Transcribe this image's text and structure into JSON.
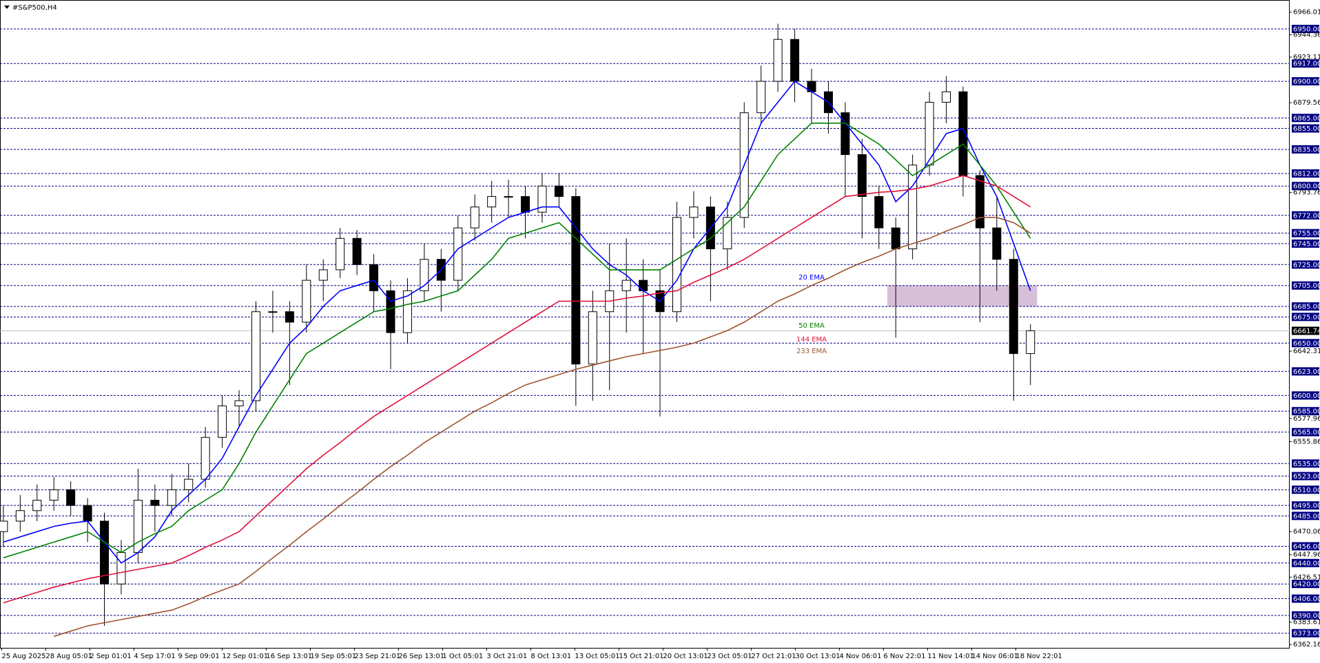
{
  "chart_data": {
    "type": "candlestick",
    "title": "#S&P500,H4",
    "ylim": [
      6359,
      6975
    ],
    "yticks": [
      6966.01,
      6944.36,
      6923.11,
      6879.56,
      6793.76,
      6642.31,
      6577.96,
      6555.86,
      6470.06,
      6447.96,
      6426.51,
      6383.61,
      6362.16
    ],
    "levels": [
      {
        "value": 6950,
        "label": "6950.00"
      },
      {
        "value": 6917,
        "label": "6917.00"
      },
      {
        "value": 6900,
        "label": "6900.00"
      },
      {
        "value": 6865,
        "label": "6865.00"
      },
      {
        "value": 6855,
        "label": "6855.00"
      },
      {
        "value": 6835,
        "label": "6835.00"
      },
      {
        "value": 6812,
        "label": "6812.00"
      },
      {
        "value": 6800,
        "label": "6800.00"
      },
      {
        "value": 6772,
        "label": "6772.00"
      },
      {
        "value": 6755,
        "label": "6755.00"
      },
      {
        "value": 6745,
        "label": "6745.00"
      },
      {
        "value": 6725,
        "label": "6725.00"
      },
      {
        "value": 6705,
        "label": "6705.00"
      },
      {
        "value": 6685,
        "label": "6685.00"
      },
      {
        "value": 6675,
        "label": "6675.00"
      },
      {
        "value": 6650,
        "label": "6650.00"
      },
      {
        "value": 6623,
        "label": "6623.00"
      },
      {
        "value": 6600,
        "label": "6600.00"
      },
      {
        "value": 6585,
        "label": "6585.00"
      },
      {
        "value": 6565,
        "label": "6565.00"
      },
      {
        "value": 6535,
        "label": "6535.00"
      },
      {
        "value": 6523,
        "label": "6523.00"
      },
      {
        "value": 6510,
        "label": "6510.00"
      },
      {
        "value": 6495,
        "label": "6495.00"
      },
      {
        "value": 6485,
        "label": "6485.00"
      },
      {
        "value": 6456,
        "label": "6456.00"
      },
      {
        "value": 6440,
        "label": "6440.00"
      },
      {
        "value": 6420,
        "label": "6420.00"
      },
      {
        "value": 6406,
        "label": "6406.00"
      },
      {
        "value": 6390,
        "label": "6390.00"
      },
      {
        "value": 6373,
        "label": "6373.00"
      }
    ],
    "level_color": "#000080",
    "last_price": 6661.74,
    "x_labels": [
      "25 Aug 2025",
      "28 Aug 05:01",
      "2 Sep 01:01",
      "4 Sep 17:01",
      "9 Sep 09:01",
      "12 Sep 01:01",
      "16 Sep 13:01",
      "19 Sep 05:01",
      "23 Sep 21:01",
      "26 Sep 13:01",
      "1 Oct 05:01",
      "3 Oct 21:01",
      "8 Oct 13:01",
      "13 Oct 05:01",
      "15 Oct 21:01",
      "20 Oct 13:01",
      "23 Oct 05:01",
      "27 Oct 21:01",
      "30 Oct 13:01",
      "4 Nov 06:01",
      "6 Nov 22:01",
      "11 Nov 14:01",
      "14 Nov 06:01",
      "18 Nov 22:01"
    ],
    "zone": [
      6685,
      6705
    ],
    "zone_color": "#d8bfd8",
    "candles": [
      [
        6470,
        6495,
        6455,
        6480
      ],
      [
        6480,
        6505,
        6470,
        6490
      ],
      [
        6490,
        6515,
        6480,
        6500
      ],
      [
        6500,
        6522,
        6490,
        6510
      ],
      [
        6510,
        6518,
        6485,
        6495
      ],
      [
        6495,
        6502,
        6460,
        6480
      ],
      [
        6480,
        6488,
        6380,
        6420
      ],
      [
        6420,
        6462,
        6410,
        6450
      ],
      [
        6450,
        6530,
        6440,
        6500
      ],
      [
        6500,
        6515,
        6470,
        6495
      ],
      [
        6495,
        6525,
        6485,
        6510
      ],
      [
        6510,
        6535,
        6498,
        6520
      ],
      [
        6520,
        6570,
        6512,
        6560
      ],
      [
        6560,
        6600,
        6550,
        6590
      ],
      [
        6590,
        6605,
        6570,
        6595
      ],
      [
        6595,
        6690,
        6585,
        6680
      ],
      [
        6680,
        6700,
        6660,
        6680
      ],
      [
        6680,
        6690,
        6610,
        6670
      ],
      [
        6670,
        6725,
        6660,
        6710
      ],
      [
        6710,
        6730,
        6690,
        6720
      ],
      [
        6720,
        6760,
        6712,
        6750
      ],
      [
        6750,
        6758,
        6715,
        6725
      ],
      [
        6725,
        6735,
        6680,
        6700
      ],
      [
        6700,
        6710,
        6625,
        6660
      ],
      [
        6660,
        6712,
        6650,
        6700
      ],
      [
        6700,
        6745,
        6690,
        6730
      ],
      [
        6730,
        6740,
        6680,
        6710
      ],
      [
        6710,
        6772,
        6700,
        6760
      ],
      [
        6760,
        6792,
        6748,
        6780
      ],
      [
        6780,
        6805,
        6765,
        6790
      ],
      [
        6790,
        6806,
        6770,
        6790
      ],
      [
        6790,
        6800,
        6750,
        6775
      ],
      [
        6775,
        6812,
        6765,
        6800
      ],
      [
        6800,
        6812,
        6780,
        6790
      ],
      [
        6790,
        6798,
        6590,
        6630
      ],
      [
        6630,
        6700,
        6595,
        6680
      ],
      [
        6680,
        6745,
        6605,
        6700
      ],
      [
        6700,
        6750,
        6660,
        6710
      ],
      [
        6710,
        6730,
        6640,
        6700
      ],
      [
        6700,
        6720,
        6580,
        6680
      ],
      [
        6680,
        6785,
        6670,
        6770
      ],
      [
        6770,
        6795,
        6750,
        6780
      ],
      [
        6780,
        6790,
        6690,
        6740
      ],
      [
        6740,
        6785,
        6720,
        6770
      ],
      [
        6770,
        6880,
        6760,
        6870
      ],
      [
        6870,
        6915,
        6860,
        6900
      ],
      [
        6900,
        6955,
        6890,
        6940
      ],
      [
        6940,
        6950,
        6880,
        6900
      ],
      [
        6900,
        6912,
        6860,
        6890
      ],
      [
        6890,
        6900,
        6850,
        6870
      ],
      [
        6870,
        6880,
        6790,
        6830
      ],
      [
        6830,
        6845,
        6750,
        6790
      ],
      [
        6790,
        6800,
        6740,
        6760
      ],
      [
        6760,
        6770,
        6655,
        6740
      ],
      [
        6740,
        6830,
        6730,
        6820
      ],
      [
        6820,
        6890,
        6810,
        6880
      ],
      [
        6880,
        6905,
        6860,
        6890
      ],
      [
        6890,
        6895,
        6790,
        6810
      ],
      [
        6810,
        6815,
        6670,
        6760
      ],
      [
        6760,
        6790,
        6700,
        6730
      ],
      [
        6730,
        6740,
        6595,
        6640
      ],
      [
        6640,
        6668,
        6610,
        6661.74
      ]
    ],
    "series": [
      {
        "name": "20 EMA",
        "color": "#0000ff",
        "values": [
          6460,
          6465,
          6470,
          6475,
          6478,
          6480,
          6460,
          6440,
          6450,
          6465,
          6490,
          6505,
          6520,
          6540,
          6570,
          6600,
          6625,
          6650,
          6665,
          6685,
          6700,
          6705,
          6710,
          6690,
          6695,
          6705,
          6720,
          6740,
          6750,
          6760,
          6770,
          6775,
          6780,
          6780,
          6760,
          6740,
          6725,
          6715,
          6700,
          6690,
          6710,
          6740,
          6760,
          6780,
          6820,
          6860,
          6880,
          6900,
          6890,
          6880,
          6860,
          6840,
          6820,
          6785,
          6800,
          6825,
          6850,
          6855,
          6820,
          6790,
          6745,
          6700
        ]
      },
      {
        "name": "50 EMA",
        "color": "#008000",
        "values": [
          6445,
          6450,
          6455,
          6460,
          6465,
          6470,
          6460,
          6450,
          6460,
          6468,
          6475,
          6490,
          6500,
          6510,
          6535,
          6565,
          6590,
          6615,
          6640,
          6650,
          6660,
          6670,
          6680,
          6683,
          6687,
          6690,
          6695,
          6700,
          6715,
          6730,
          6750,
          6755,
          6760,
          6765,
          6750,
          6735,
          6720,
          6720,
          6720,
          6720,
          6730,
          6740,
          6750,
          6765,
          6780,
          6805,
          6830,
          6845,
          6860,
          6860,
          6860,
          6850,
          6840,
          6825,
          6810,
          6820,
          6830,
          6840,
          6820,
          6800,
          6775,
          6750
        ]
      },
      {
        "name": "144 EMA",
        "color": "#e0103a",
        "values": [
          6402,
          6407,
          6412,
          6417,
          6421,
          6425,
          6428,
          6431,
          6434,
          6437,
          6440,
          6447,
          6455,
          6462,
          6470,
          6485,
          6500,
          6515,
          6530,
          6543,
          6555,
          6568,
          6580,
          6590,
          6600,
          6610,
          6620,
          6630,
          6640,
          6650,
          6660,
          6670,
          6680,
          6690,
          6690,
          6690,
          6690,
          6693,
          6695,
          6698,
          6700,
          6708,
          6715,
          6722,
          6730,
          6740,
          6750,
          6760,
          6770,
          6780,
          6790,
          6792,
          6794,
          6795,
          6797,
          6800,
          6805,
          6810,
          6805,
          6800,
          6790,
          6780
        ]
      },
      {
        "name": "233 EMA",
        "color": "#a0522d",
        "values": [
          null,
          null,
          null,
          6370,
          6375,
          6380,
          6383,
          6386,
          6389,
          6392,
          6395,
          6401,
          6408,
          6414,
          6420,
          6432,
          6445,
          6457,
          6470,
          6482,
          6495,
          6507,
          6520,
          6532,
          6543,
          6555,
          6565,
          6575,
          6585,
          6593,
          6602,
          6610,
          6615,
          6620,
          6625,
          6629,
          6633,
          6637,
          6640,
          6643,
          6646,
          6650,
          6656,
          6662,
          6670,
          6680,
          6690,
          6697,
          6705,
          6712,
          6720,
          6727,
          6733,
          6740,
          6745,
          6750,
          6757,
          6763,
          6770,
          6770,
          6765,
          6755
        ]
      }
    ]
  }
}
